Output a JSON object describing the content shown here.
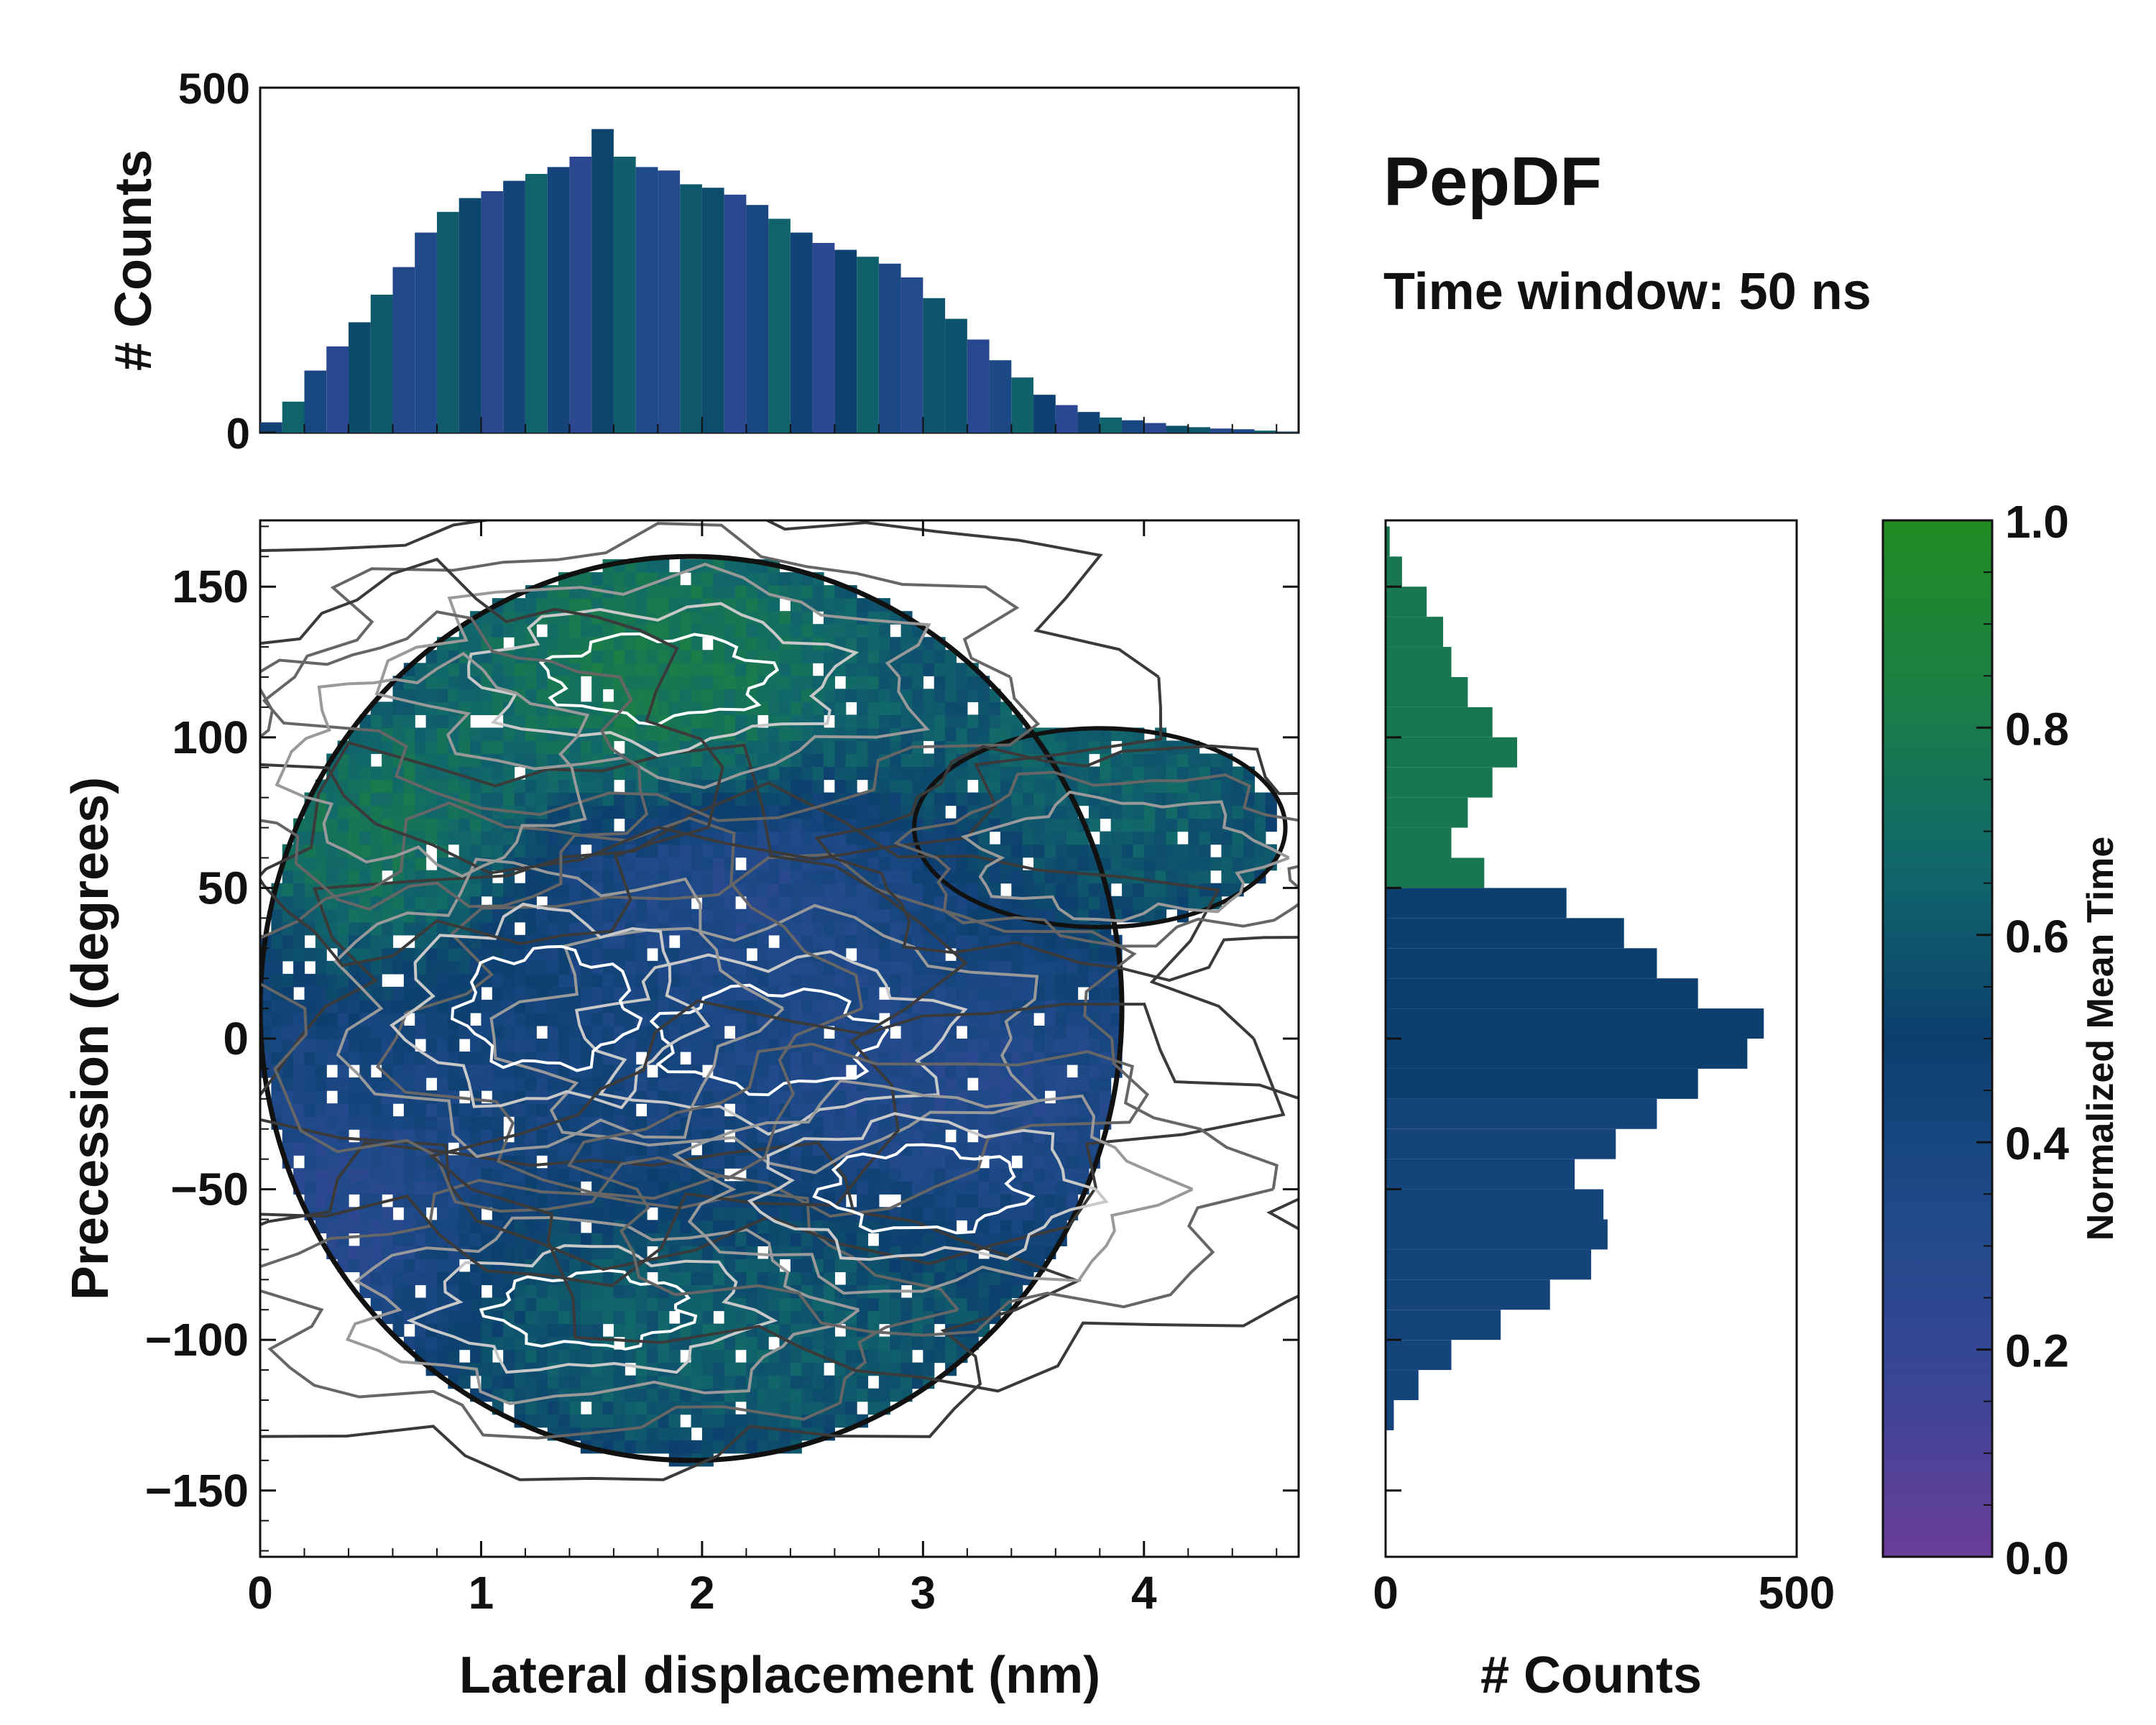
{
  "chart_data": {
    "title": "PepDF",
    "subtitle": "Time window: 50 ns",
    "colors": {
      "colormap": [
        "#6a3d9a",
        "#3a4596",
        "#1f4a8a",
        "#0c3f6e",
        "#11676b",
        "#1c7f45",
        "#228b22"
      ],
      "contour_levels": [
        "#111111",
        "#3a3a3a",
        "#666666",
        "#999999",
        "#c8c8c8",
        "#ffffff"
      ],
      "outline": "#111111"
    },
    "panels": [
      {
        "id": "top-histogram",
        "type": "bar",
        "orientation": "vertical",
        "xlim": [
          0,
          4.7
        ],
        "ylim": [
          0,
          500
        ],
        "ylabel": "# Counts",
        "yticks": [
          0,
          500
        ],
        "x": [
          0.05,
          0.15,
          0.25,
          0.35,
          0.45,
          0.55,
          0.65,
          0.75,
          0.85,
          0.95,
          1.05,
          1.15,
          1.25,
          1.35,
          1.45,
          1.55,
          1.65,
          1.75,
          1.85,
          1.95,
          2.05,
          2.15,
          2.25,
          2.35,
          2.45,
          2.55,
          2.65,
          2.75,
          2.85,
          2.95,
          3.05,
          3.15,
          3.25,
          3.35,
          3.45,
          3.55,
          3.65,
          3.75,
          3.85,
          3.95,
          4.05,
          4.15,
          4.25,
          4.35,
          4.45,
          4.55,
          4.65
        ],
        "values": [
          15,
          45,
          90,
          125,
          160,
          200,
          240,
          290,
          320,
          340,
          350,
          365,
          375,
          385,
          400,
          440,
          400,
          385,
          380,
          360,
          355,
          345,
          330,
          310,
          290,
          275,
          265,
          255,
          245,
          225,
          195,
          165,
          135,
          105,
          80,
          55,
          40,
          30,
          22,
          18,
          14,
          10,
          8,
          6,
          5,
          3,
          1
        ]
      },
      {
        "id": "main-heatmap",
        "type": "heatmap",
        "xlabel": "Lateral displacement (nm)",
        "ylabel": "Precession (degrees)",
        "xlim": [
          0,
          4.7
        ],
        "ylim": [
          -172,
          172
        ],
        "xticks": [
          0,
          1,
          2,
          3,
          4
        ],
        "yticks": [
          -150,
          -100,
          -50,
          0,
          50,
          100,
          150
        ],
        "ytick_labels": [
          "−150",
          "−100",
          "−50",
          "0",
          "50",
          "100",
          "150"
        ],
        "blobs": [
          {
            "x": 1.5,
            "y": -90,
            "sx": 0.8,
            "sy": 22
          },
          {
            "x": 2.3,
            "y": 0,
            "sx": 0.9,
            "sy": 30
          },
          {
            "x": 1.3,
            "y": 10,
            "sx": 0.7,
            "sy": 35
          },
          {
            "x": 1.8,
            "y": 120,
            "sx": 0.9,
            "sy": 25
          },
          {
            "x": 3.0,
            "y": -50,
            "sx": 0.8,
            "sy": 25
          },
          {
            "x": 0.8,
            "y": 90,
            "sx": 0.5,
            "sy": 25
          },
          {
            "x": 3.9,
            "y": 60,
            "sx": 0.5,
            "sy": 15
          }
        ],
        "time_regions": [
          {
            "x": 1.8,
            "y": 125,
            "sx": 0.6,
            "sy": 30,
            "t": 0.95
          },
          {
            "x": 3.6,
            "y": 65,
            "sx": 0.6,
            "sy": 35,
            "t": 0.88
          },
          {
            "x": 2.0,
            "y": -100,
            "sx": 1.0,
            "sy": 25,
            "t": 0.72
          },
          {
            "x": 0.5,
            "y": 70,
            "sx": 0.4,
            "sy": 25,
            "t": 0.9
          },
          {
            "x": 3.3,
            "y": 20,
            "sx": 0.6,
            "sy": 40,
            "t": 0.2
          },
          {
            "x": 0.3,
            "y": -80,
            "sx": 0.4,
            "sy": 30,
            "t": 0.18
          },
          {
            "x": 2.4,
            "y": 55,
            "sx": 0.6,
            "sy": 15,
            "t": 0.22
          }
        ]
      },
      {
        "id": "right-histogram",
        "type": "bar",
        "orientation": "horizontal",
        "xlabel": "# Counts",
        "xlim": [
          0,
          500
        ],
        "ylim": [
          -172,
          172
        ],
        "xticks": [
          0,
          500
        ],
        "y": [
          -125,
          -115,
          -105,
          -95,
          -85,
          -75,
          -65,
          -55,
          -45,
          -35,
          -25,
          -15,
          -5,
          5,
          15,
          25,
          35,
          45,
          55,
          65,
          75,
          85,
          95,
          105,
          115,
          125,
          135,
          145,
          155,
          165
        ],
        "values": [
          10,
          40,
          80,
          140,
          200,
          250,
          270,
          265,
          230,
          280,
          330,
          380,
          440,
          460,
          380,
          330,
          290,
          220,
          120,
          80,
          100,
          130,
          160,
          130,
          100,
          80,
          70,
          50,
          20,
          5
        ]
      },
      {
        "id": "colorbar",
        "type": "colorbar",
        "label": "Normalized Mean Time",
        "lim": [
          0,
          1
        ],
        "ticks": [
          "0.0",
          "0.2",
          "0.4",
          "0.6",
          "0.8",
          "1.0"
        ]
      }
    ]
  }
}
